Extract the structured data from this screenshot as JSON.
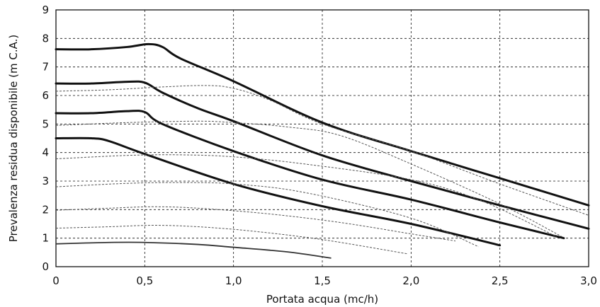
{
  "chart_data": {
    "type": "line",
    "title": "",
    "xlabel": "Portata acqua (mc/h)",
    "ylabel": "Prevalenza residua disponibile (m C.A.)",
    "xlim": [
      0,
      3.0
    ],
    "ylim": [
      0,
      9
    ],
    "x_ticks": [
      "0",
      "0,5",
      "1,0",
      "1,5",
      "2,0",
      "2,5",
      "3,0"
    ],
    "y_ticks": [
      "0",
      "1",
      "2",
      "3",
      "4",
      "5",
      "6",
      "7",
      "8",
      "9"
    ],
    "grid": true,
    "series": [
      {
        "style": "bold",
        "x": [
          0,
          0.2,
          0.4,
          0.52,
          0.6,
          0.7,
          1.0,
          1.5,
          2.0,
          2.5,
          3.0
        ],
        "y": [
          7.62,
          7.62,
          7.7,
          7.8,
          7.7,
          7.3,
          6.5,
          5.05,
          4.05,
          3.1,
          2.15
        ]
      },
      {
        "style": "bold",
        "x": [
          0,
          0.2,
          0.4,
          0.5,
          0.6,
          0.8,
          1.0,
          1.5,
          2.0,
          2.5,
          3.0
        ],
        "y": [
          6.42,
          6.42,
          6.48,
          6.45,
          6.1,
          5.55,
          5.1,
          3.9,
          3.0,
          2.15,
          1.33
        ]
      },
      {
        "style": "bold",
        "x": [
          0,
          0.2,
          0.4,
          0.5,
          0.6,
          1.0,
          1.5,
          2.0,
          2.5,
          2.86
        ],
        "y": [
          5.38,
          5.38,
          5.45,
          5.42,
          5.0,
          4.05,
          3.05,
          2.35,
          1.55,
          1.0
        ]
      },
      {
        "style": "bold",
        "x": [
          0,
          0.2,
          0.3,
          0.5,
          1.0,
          1.5,
          2.0,
          2.5
        ],
        "y": [
          4.5,
          4.5,
          4.4,
          3.95,
          2.9,
          2.12,
          1.5,
          0.75
        ]
      },
      {
        "style": "medium",
        "x": [
          0,
          0.3,
          0.5,
          0.8,
          1.0,
          1.3,
          1.55
        ],
        "y": [
          0.8,
          0.85,
          0.85,
          0.78,
          0.68,
          0.52,
          0.3
        ]
      },
      {
        "style": "dashed",
        "x": [
          0,
          0.3,
          0.6,
          0.85,
          1.0,
          1.2,
          1.5,
          2.0,
          2.5,
          3.0
        ],
        "y": [
          6.15,
          6.2,
          6.3,
          6.35,
          6.25,
          5.85,
          5.0,
          4.05,
          2.9,
          1.8
        ]
      },
      {
        "style": "dashed",
        "x": [
          0,
          0.4,
          0.8,
          1.0,
          1.3,
          1.6,
          2.0,
          2.5,
          2.85
        ],
        "y": [
          4.95,
          5.05,
          5.1,
          5.05,
          4.9,
          4.6,
          3.6,
          2.2,
          1.05
        ]
      },
      {
        "style": "dashed",
        "x": [
          0,
          0.4,
          0.7,
          1.0,
          1.4,
          2.0,
          2.4,
          2.82
        ],
        "y": [
          3.78,
          3.9,
          3.92,
          3.85,
          3.6,
          3.05,
          2.3,
          1.05
        ]
      },
      {
        "style": "dashed",
        "x": [
          0,
          0.4,
          0.7,
          1.0,
          1.4,
          2.0,
          2.38
        ],
        "y": [
          2.8,
          2.92,
          2.95,
          2.9,
          2.6,
          1.7,
          0.7
        ]
      },
      {
        "style": "dashed",
        "x": [
          0,
          0.3,
          0.55,
          0.8,
          1.2,
          1.6,
          2.0,
          2.25
        ],
        "y": [
          1.98,
          2.05,
          2.1,
          2.05,
          1.85,
          1.55,
          1.15,
          0.9
        ]
      },
      {
        "style": "dashed",
        "x": [
          0,
          0.3,
          0.55,
          0.8,
          1.1,
          1.5,
          1.98
        ],
        "y": [
          1.35,
          1.4,
          1.45,
          1.4,
          1.25,
          0.95,
          0.45
        ]
      }
    ]
  }
}
